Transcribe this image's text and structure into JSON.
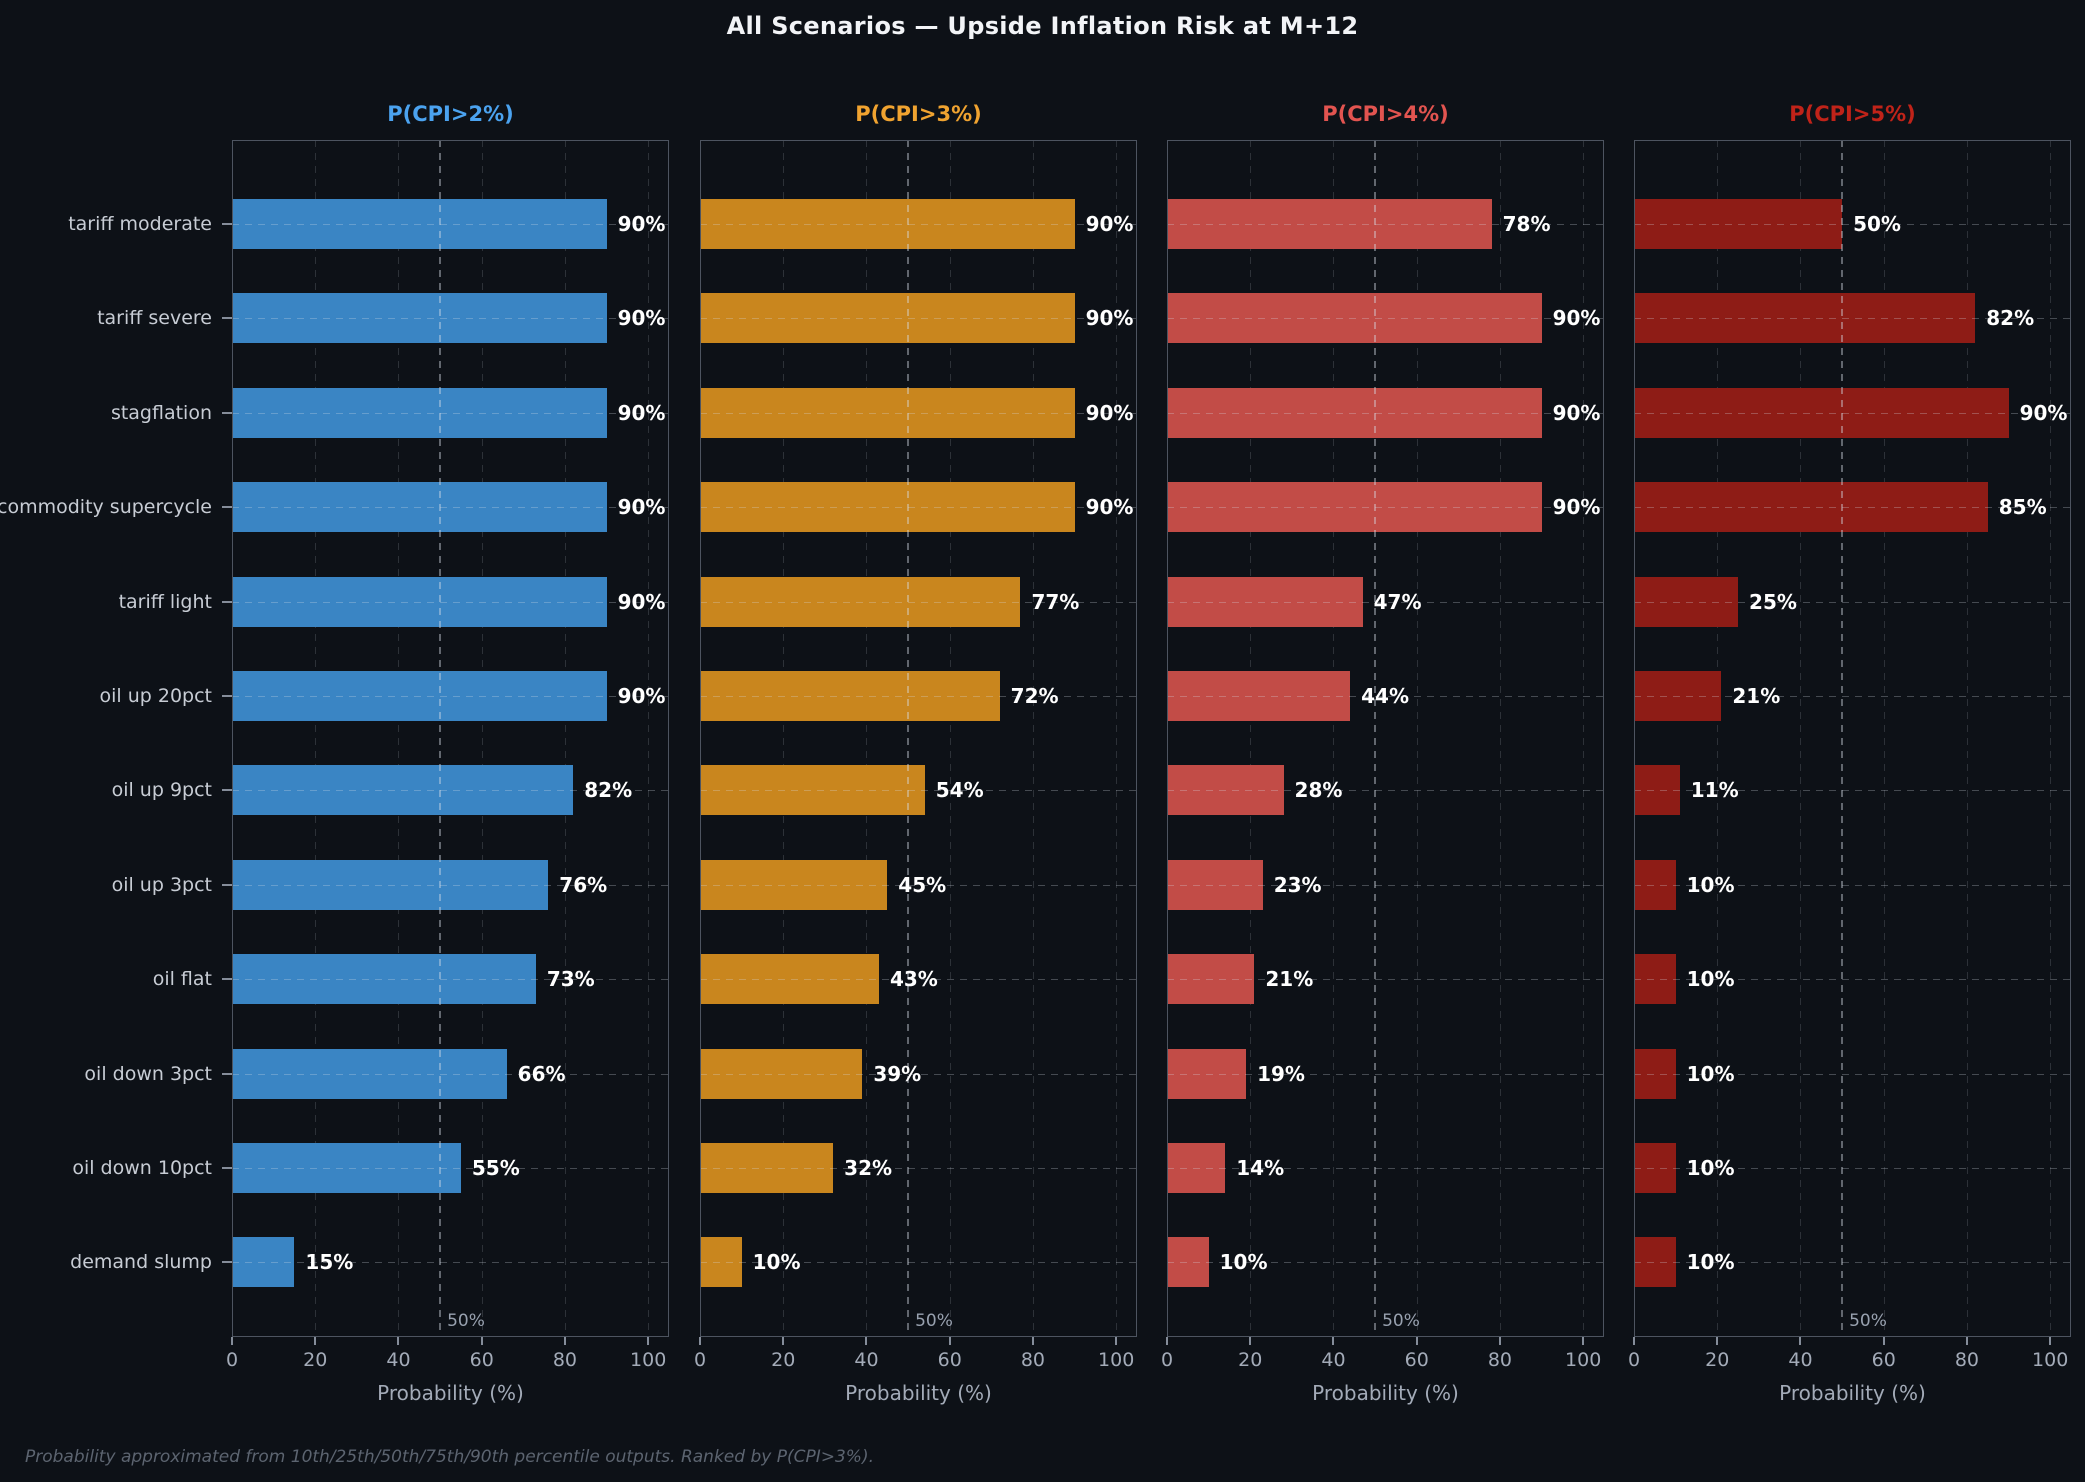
{
  "title": "All Scenarios — Upside Inflation Risk at M+12",
  "footer_note": "Probability approximated from 10th/25th/50th/75th/90th percentile outputs. Ranked by P(CPI>3%).",
  "background_color": "#0d1117",
  "chart_data": {
    "type": "bar",
    "orientation": "horizontal",
    "title": "All Scenarios — Upside Inflation Risk at M+12",
    "xlabel": "Probability (%)",
    "x_ticks": [
      0,
      20,
      40,
      60,
      80,
      100
    ],
    "xlim": [
      0,
      105
    ],
    "grid": true,
    "value_suffix": "%",
    "reference_line": {
      "x": 50,
      "label": "50%"
    },
    "categories": [
      "tariff moderate",
      "tariff severe",
      "stagflation",
      "commodity supercycle",
      "tariff light",
      "oil up 20pct",
      "oil up 9pct",
      "oil up 3pct",
      "oil flat",
      "oil down 3pct",
      "oil down 10pct",
      "demand slump"
    ],
    "panels": [
      {
        "title": "P(CPI>2%)",
        "title_color": "#4ba3f0",
        "bar_color": "#3a85c4",
        "values": [
          90,
          90,
          90,
          90,
          90,
          90,
          82,
          76,
          73,
          66,
          55,
          15
        ]
      },
      {
        "title": "P(CPI>3%)",
        "title_color": "#f0a330",
        "bar_color": "#c9861e",
        "values": [
          90,
          90,
          90,
          90,
          77,
          72,
          54,
          45,
          43,
          39,
          32,
          10
        ]
      },
      {
        "title": "P(CPI>4%)",
        "title_color": "#e25450",
        "bar_color": "#c24c47",
        "values": [
          78,
          90,
          90,
          90,
          47,
          44,
          28,
          23,
          21,
          19,
          14,
          10
        ]
      },
      {
        "title": "P(CPI>5%)",
        "title_color": "#c02319",
        "bar_color": "#8e1c16",
        "values": [
          50,
          82,
          90,
          85,
          25,
          21,
          11,
          10,
          10,
          10,
          10,
          10
        ]
      }
    ],
    "footnote": "Probability approximated from 10th/25th/50th/75th/90th percentile outputs. Ranked by P(CPI>3%)."
  }
}
